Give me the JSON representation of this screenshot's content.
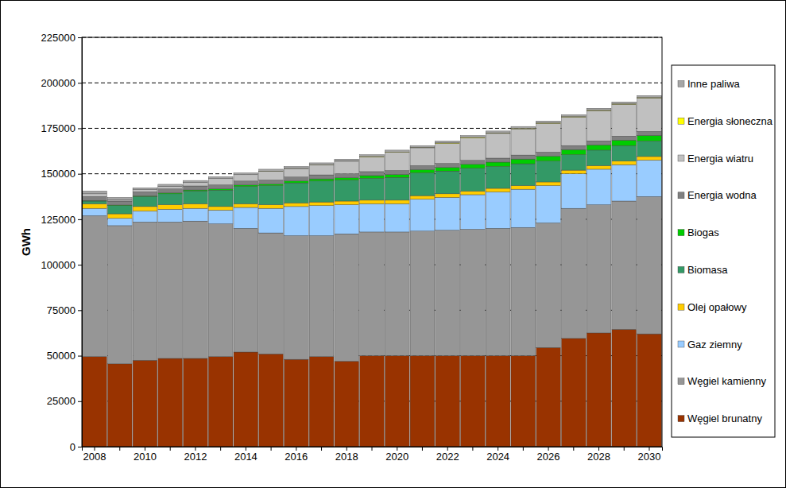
{
  "chart_data": {
    "type": "bar",
    "stacked": true,
    "grid": true,
    "legend": "right",
    "y_label": "GWh",
    "categories": [
      "2008",
      null,
      "2010",
      null,
      "2012",
      null,
      "2014",
      null,
      "2016",
      null,
      "2018",
      null,
      "2020",
      null,
      "2022",
      null,
      "2024",
      null,
      "2026",
      null,
      "2028",
      null,
      "2030"
    ],
    "ylim": [
      0,
      225000
    ],
    "yticks": [
      0,
      25000,
      50000,
      75000,
      100000,
      125000,
      150000,
      175000,
      200000,
      225000
    ],
    "series": [
      {
        "name": "Węgiel brunatny",
        "color": "#993300",
        "values": [
          49500,
          45500,
          47500,
          48500,
          48500,
          49500,
          52000,
          51000,
          48000,
          49500,
          47000,
          50000,
          50000,
          50000,
          50000,
          50000,
          50000,
          50000,
          54500,
          59500,
          62500,
          64500,
          62000
        ]
      },
      {
        "name": "Węgiel kamienny",
        "color": "#969696",
        "values": [
          77500,
          76000,
          76000,
          75000,
          75500,
          73000,
          68000,
          66500,
          68000,
          66500,
          70000,
          68000,
          68000,
          68500,
          69000,
          69500,
          70000,
          70500,
          68500,
          71500,
          70500,
          70500,
          75500
        ]
      },
      {
        "name": "Gaz ziemny",
        "color": "#99ccff",
        "values": [
          4000,
          4000,
          6000,
          7000,
          7000,
          7500,
          11500,
          13500,
          16000,
          16500,
          16000,
          15500,
          15500,
          17500,
          18000,
          19000,
          20000,
          21000,
          20500,
          19000,
          19500,
          20000,
          20000
        ]
      },
      {
        "name": "Olej opałowy",
        "color": "#ffcc00",
        "values": [
          2500,
          2500,
          2500,
          2500,
          2500,
          2000,
          2000,
          2000,
          2000,
          2000,
          2000,
          2000,
          2000,
          2000,
          2000,
          2000,
          2000,
          2000,
          2000,
          2000,
          2000,
          2000,
          2000
        ]
      },
      {
        "name": "Biomasa",
        "color": "#339966",
        "values": [
          1500,
          4500,
          5500,
          6000,
          7000,
          9000,
          9500,
          10500,
          11000,
          11500,
          11500,
          12000,
          12500,
          12500,
          12500,
          12500,
          12000,
          12000,
          11500,
          8500,
          8500,
          8500,
          8500
        ]
      },
      {
        "name": "Biogas",
        "color": "#00cc00",
        "values": [
          300,
          300,
          400,
          500,
          600,
          700,
          800,
          900,
          1000,
          1200,
          1300,
          1500,
          1600,
          1800,
          2000,
          2200,
          2400,
          2600,
          2700,
          2800,
          2900,
          3000,
          3100
        ]
      },
      {
        "name": "Energia wodna",
        "color": "#808080",
        "values": [
          2200,
          2200,
          2200,
          2200,
          2200,
          2200,
          2200,
          2200,
          2200,
          2200,
          2200,
          2200,
          2200,
          2200,
          2200,
          2200,
          2200,
          2200,
          2200,
          2200,
          2200,
          2200,
          2200
        ]
      },
      {
        "name": "Energia wiatru",
        "color": "#c0c0c0",
        "values": [
          1500,
          800,
          1200,
          1500,
          2000,
          3500,
          3500,
          4800,
          4700,
          5500,
          6900,
          8100,
          10000,
          9800,
          11000,
          12300,
          13600,
          14400,
          15800,
          15700,
          16600,
          17500,
          18400
        ]
      },
      {
        "name": "Energia słoneczna",
        "color": "#ffff00",
        "values": [
          0,
          0,
          0,
          0,
          0,
          0,
          0,
          100,
          100,
          100,
          100,
          200,
          200,
          200,
          300,
          300,
          300,
          300,
          300,
          300,
          300,
          300,
          300
        ]
      },
      {
        "name": "Inne paliwa",
        "color": "#a6a6a6",
        "values": [
          1500,
          1200,
          1000,
          1000,
          1000,
          1000,
          1000,
          1000,
          1000,
          1000,
          1000,
          1000,
          1000,
          1000,
          1000,
          1000,
          1000,
          1000,
          1000,
          1000,
          1000,
          1000,
          1000
        ]
      }
    ]
  }
}
